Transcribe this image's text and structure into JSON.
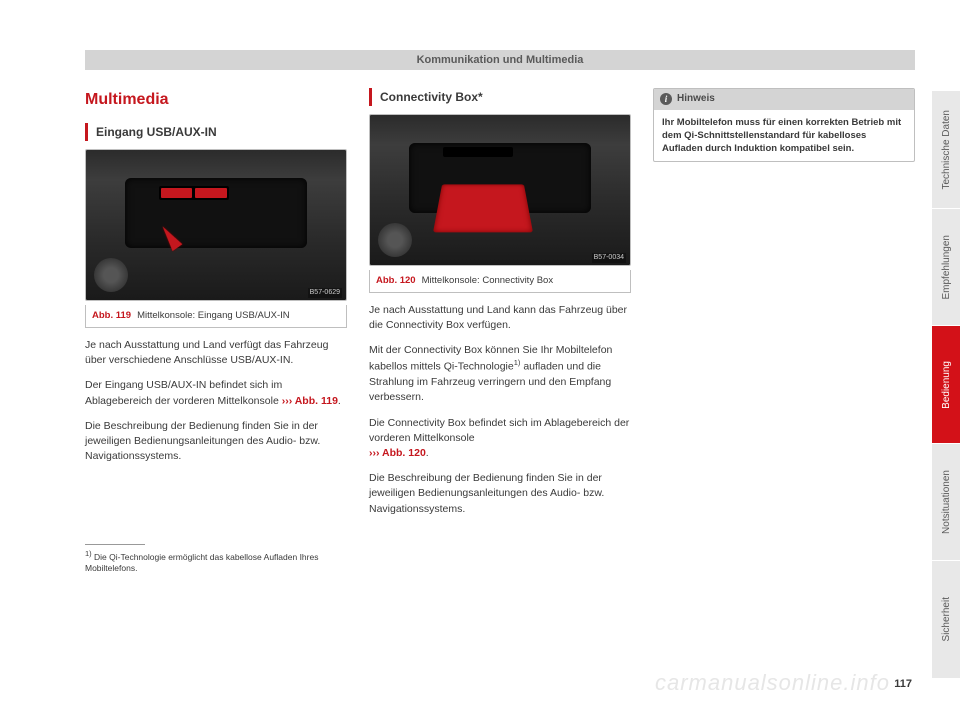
{
  "header": "Kommunikation und Multimedia",
  "page_number": "117",
  "watermark": "carmanualsonline.info",
  "tabs": [
    {
      "label": "Technische Daten",
      "active": false
    },
    {
      "label": "Empfehlungen",
      "active": false
    },
    {
      "label": "Bedienung",
      "active": true
    },
    {
      "label": "Notsituationen",
      "active": false
    },
    {
      "label": "Sicherheit",
      "active": false
    }
  ],
  "col1": {
    "section_title": "Multimedia",
    "sub_title": "Eingang USB/AUX-IN",
    "fig_code": "B57-0629",
    "fig_label": "Abb. 119",
    "fig_caption": "Mittelkonsole: Eingang USB/AUX-IN",
    "p1": "Je nach Ausstattung und Land verfügt das Fahrzeug über verschiedene Anschlüsse USB/AUX-IN.",
    "p2a": "Der Eingang USB/AUX-IN befindet sich im Ablagebereich der vorderen Mittelkonsole ",
    "p2ref": "››› Abb. 119",
    "p2b": ".",
    "p3": "Die Beschreibung der Bedienung finden Sie in der jeweiligen Bedienungsanleitungen des Audio- bzw. Navigationssystems.",
    "footnote_marker": "1)",
    "footnote": " Die Qi-Technologie ermöglicht das kabellose Aufladen Ihres Mobiltelefons."
  },
  "col2": {
    "sub_title": "Connectivity Box*",
    "fig_code": "B57-0034",
    "fig_label": "Abb. 120",
    "fig_caption": "Mittelkonsole: Connectivity Box",
    "p1": "Je nach Ausstattung und Land kann das Fahrzeug über die Connectivity Box verfügen.",
    "p2a": "Mit der Connectivity Box können Sie Ihr Mobiltelefon kabellos mittels Qi-Technologie",
    "p2sup": "1)",
    "p2b": " aufladen und die Strahlung im Fahrzeug verringern und den Empfang verbessern.",
    "p3a": "Die Connectivity Box befindet sich im Ablagebereich der vorderen Mittelkonsole ",
    "p3ref": "››› Abb. 120",
    "p3b": ".",
    "p4": "Die Beschreibung der Bedienung finden Sie in der jeweiligen Bedienungsanleitungen des Audio- bzw. Navigationssystems."
  },
  "col3": {
    "notice_icon": "i",
    "notice_label": "Hinweis",
    "notice_body": "Ihr Mobiltelefon muss für einen korrekten Betrieb mit dem Qi-Schnittstellenstandard für kabelloses Aufladen durch Induktion kompatibel sein."
  },
  "colors": {
    "accent": "#c5171e",
    "header_bg": "#d4d4d4",
    "tab_bg": "#e8e8e8",
    "tab_active": "#d31118",
    "text": "#3a3a3a"
  }
}
